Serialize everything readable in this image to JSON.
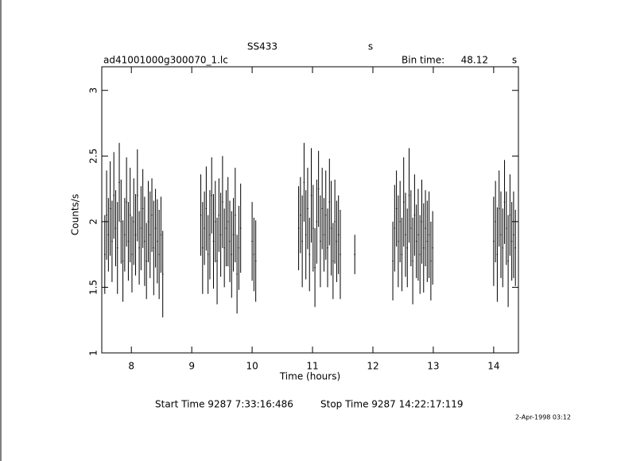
{
  "chart_data": {
    "type": "errorbar",
    "title": "SS433",
    "title_unit": "s",
    "file_name": "ad41001000g300070_1.lc",
    "bin_time_label": "Bin time:",
    "bin_time": "48.12",
    "bin_time_unit": "s",
    "xlabel": "Time (hours)",
    "ylabel": "Counts/s",
    "start_time": "Start Time  9287  7:33:16:486",
    "stop_time": "Stop Time  9287 14:22:17:119",
    "date": "2-Apr-1998 03:12",
    "color": "#000000",
    "xlim": [
      7.51,
      14.41
    ],
    "ylim": [
      1,
      3.18
    ],
    "xticks": [
      8,
      9,
      10,
      11,
      12,
      13,
      14
    ],
    "yticks": [
      1,
      1.5,
      2,
      2.5,
      3
    ],
    "x": [
      7.56,
      7.59,
      7.62,
      7.65,
      7.68,
      7.71,
      7.74,
      7.77,
      7.8,
      7.83,
      7.86,
      7.89,
      7.92,
      7.95,
      7.98,
      8.01,
      8.04,
      8.07,
      8.1,
      8.13,
      8.16,
      8.19,
      8.22,
      8.25,
      8.28,
      8.31,
      8.34,
      8.37,
      8.4,
      8.43,
      8.46,
      8.49,
      8.52,
      9.15,
      9.18,
      9.21,
      9.24,
      9.27,
      9.3,
      9.33,
      9.36,
      9.39,
      9.42,
      9.45,
      9.48,
      9.51,
      9.54,
      9.57,
      9.6,
      9.63,
      9.66,
      9.69,
      9.72,
      9.75,
      9.78,
      9.81,
      10.0,
      10.03,
      10.06,
      10.77,
      10.8,
      10.83,
      10.86,
      10.89,
      10.92,
      10.95,
      10.98,
      11.01,
      11.04,
      11.07,
      11.1,
      11.13,
      11.16,
      11.19,
      11.22,
      11.25,
      11.28,
      11.31,
      11.34,
      11.37,
      11.4,
      11.43,
      11.46,
      11.7,
      12.33,
      12.36,
      12.39,
      12.42,
      12.45,
      12.48,
      12.51,
      12.54,
      12.57,
      12.6,
      12.63,
      12.66,
      12.69,
      12.72,
      12.75,
      12.78,
      12.81,
      12.84,
      12.87,
      12.9,
      12.93,
      12.96,
      12.99,
      14.0,
      14.03,
      14.06,
      14.09,
      14.12,
      14.15,
      14.18,
      14.21,
      14.24,
      14.27,
      14.3,
      14.33,
      14.36
    ],
    "values": [
      1.75,
      2.05,
      1.9,
      2.1,
      1.85,
      2.2,
      1.95,
      1.8,
      2.3,
      2.0,
      1.7,
      1.9,
      2.15,
      1.85,
      2.05,
      1.75,
      2.0,
      1.9,
      2.2,
      1.8,
      1.95,
      2.1,
      1.85,
      1.7,
      2.0,
      1.9,
      2.05,
      1.8,
      1.95,
      1.85,
      1.75,
      1.9,
      1.6,
      2.05,
      1.8,
      1.95,
      2.1,
      1.75,
      1.9,
      2.2,
      1.85,
      2.0,
      1.7,
      2.05,
      1.9,
      2.15,
      1.8,
      1.95,
      2.0,
      1.85,
      1.75,
      1.9,
      2.05,
      1.6,
      1.8,
      1.95,
      1.85,
      1.75,
      1.7,
      1.95,
      2.05,
      1.85,
      2.3,
      1.9,
      2.1,
      1.75,
      2.2,
      1.95,
      1.65,
      2.0,
      2.25,
      1.85,
      2.1,
      1.9,
      2.05,
      1.8,
      2.15,
      1.95,
      1.7,
      2.0,
      1.85,
      1.9,
      1.75,
      1.75,
      1.7,
      1.95,
      2.1,
      1.85,
      2.0,
      1.75,
      2.15,
      1.9,
      1.8,
      2.2,
      1.95,
      1.7,
      2.05,
      1.85,
      1.9,
      1.75,
      2.0,
      1.8,
      1.95,
      1.85,
      1.9,
      1.7,
      1.8,
      1.85,
      2.0,
      1.75,
      2.1,
      1.9,
      1.8,
      2.15,
      1.95,
      1.7,
      2.05,
      1.85,
      1.9,
      1.8
    ],
    "errors": [
      0.3,
      0.34,
      0.28,
      0.36,
      0.31,
      0.33,
      0.29,
      0.35,
      0.3,
      0.32,
      0.31,
      0.28,
      0.34,
      0.3,
      0.36,
      0.29,
      0.33,
      0.31,
      0.35,
      0.28,
      0.32,
      0.3,
      0.34,
      0.29,
      0.31,
      0.33,
      0.28,
      0.36,
      0.3,
      0.32,
      0.34,
      0.29,
      0.33,
      0.31,
      0.35,
      0.28,
      0.32,
      0.3,
      0.34,
      0.29,
      0.36,
      0.31,
      0.33,
      0.28,
      0.32,
      0.35,
      0.3,
      0.29,
      0.34,
      0.31,
      0.33,
      0.28,
      0.36,
      0.3,
      0.32,
      0.34,
      0.3,
      0.28,
      0.31,
      0.32,
      0.29,
      0.35,
      0.3,
      0.34,
      0.31,
      0.28,
      0.36,
      0.33,
      0.3,
      0.32,
      0.29,
      0.35,
      0.31,
      0.28,
      0.34,
      0.3,
      0.33,
      0.36,
      0.29,
      0.32,
      0.31,
      0.3,
      0.34,
      0.15,
      0.3,
      0.33,
      0.29,
      0.35,
      0.31,
      0.28,
      0.34,
      0.32,
      0.3,
      0.36,
      0.29,
      0.33,
      0.31,
      0.28,
      0.35,
      0.3,
      0.32,
      0.34,
      0.29,
      0.31,
      0.33,
      0.3,
      0.28,
      0.34,
      0.31,
      0.36,
      0.29,
      0.33,
      0.3,
      0.32,
      0.28,
      0.35,
      0.31,
      0.3,
      0.33,
      0.29
    ]
  }
}
